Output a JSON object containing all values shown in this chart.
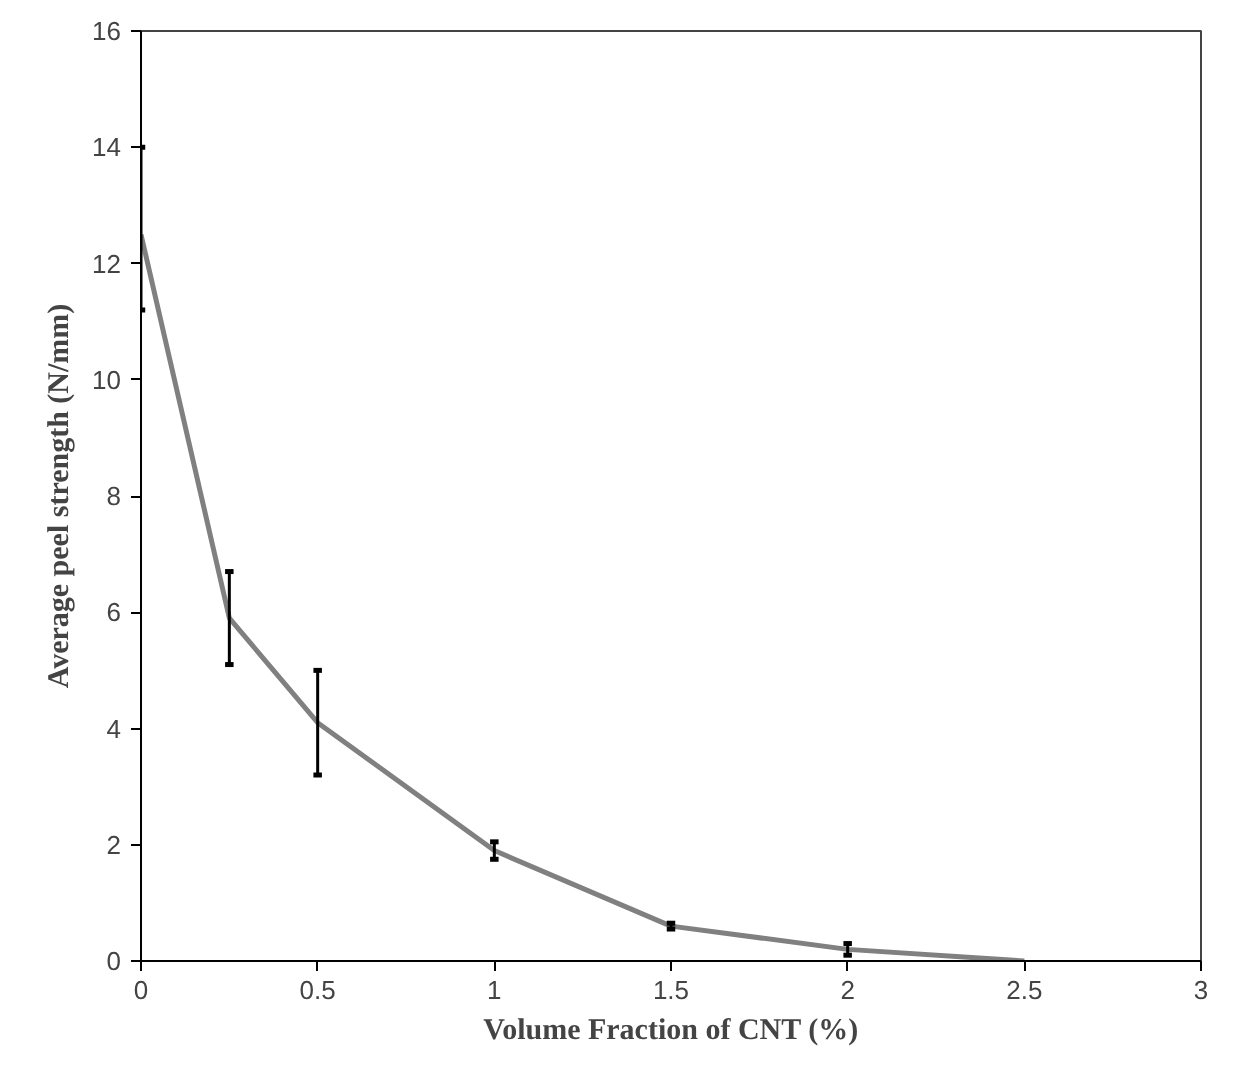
{
  "chart_data": {
    "type": "line",
    "xlabel": "Volume Fraction of CNT (%)",
    "ylabel": "Average peel strength (N/mm)",
    "x": [
      0,
      0.25,
      0.5,
      1,
      1.5,
      2,
      2.5
    ],
    "series": [
      {
        "color": "#808080",
        "values": [
          12.5,
          5.9,
          4.1,
          1.9,
          0.6,
          0.2,
          0
        ],
        "errors": [
          [
            11.2,
            14
          ],
          [
            5.1,
            6.7
          ],
          [
            3.2,
            5.0
          ],
          [
            1.75,
            2.05
          ],
          [
            0.55,
            0.65
          ],
          [
            0.1,
            0.3
          ],
          null
        ]
      }
    ],
    "xlim": [
      0,
      3
    ],
    "xticks": [
      0,
      0.5,
      1,
      1.5,
      2,
      2.5,
      3
    ],
    "ylim": [
      0,
      16
    ],
    "yticks": [
      0,
      2,
      4,
      6,
      8,
      10,
      12,
      14,
      16
    ],
    "grid": false,
    "marker": "none",
    "line_style": "solid"
  }
}
